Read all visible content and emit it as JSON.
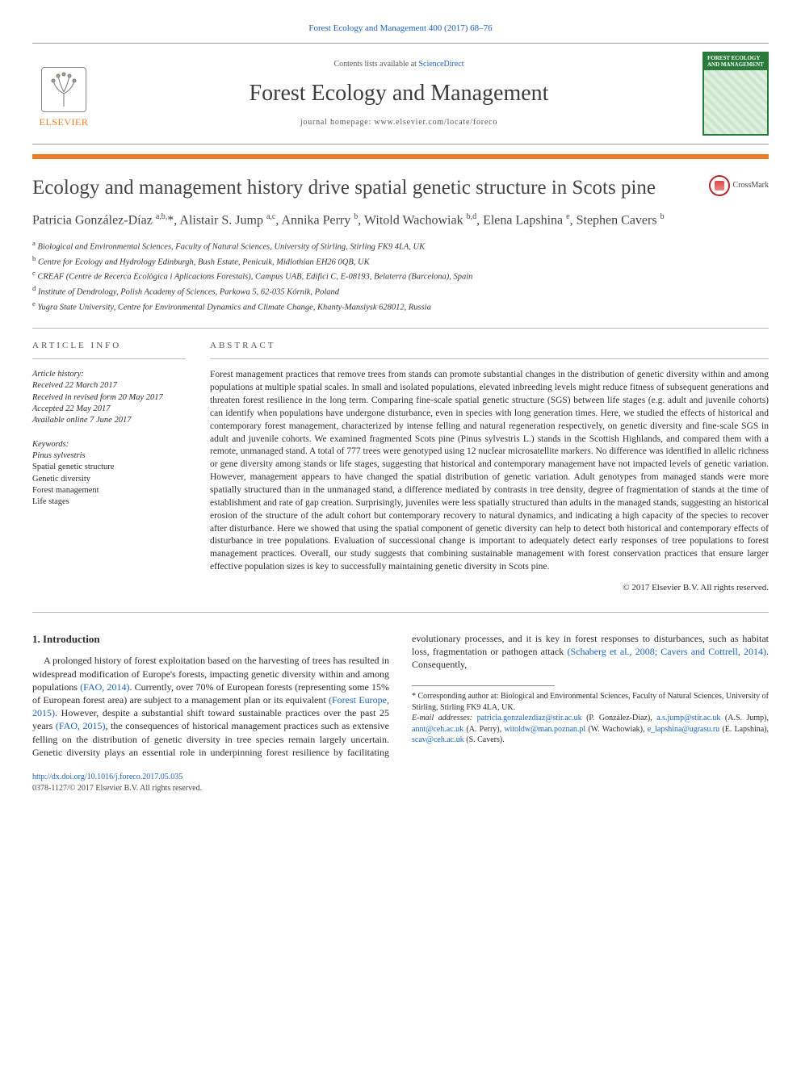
{
  "colors": {
    "link": "#1a62b8",
    "accent": "#ef7a22",
    "coverGreen": "#2a7a3a",
    "text": "#2b2b2b",
    "rule": "#bbbbbb"
  },
  "header": {
    "citation": "Forest Ecology and Management 400 (2017) 68–76",
    "contentsPrefix": "Contents lists available at ",
    "contentsLinkText": "ScienceDirect",
    "journalName": "Forest Ecology and Management",
    "homepagePrefix": "journal homepage: ",
    "homepageUrl": "www.elsevier.com/locate/foreco",
    "publisherLogoText": "ELSEVIER",
    "coverTitle": "FOREST ECOLOGY AND MANAGEMENT"
  },
  "article": {
    "title": "Ecology and management history drive spatial genetic structure in Scots pine",
    "crossmarkLabel": "CrossMark",
    "authorsHtml": "Patricia González-Díaz <sup>a,b,</sup>*, Alistair S. Jump <sup>a,c</sup>, Annika Perry <sup>b</sup>, Witold Wachowiak <sup>b,d</sup>, Elena Lapshina <sup>e</sup>, Stephen Cavers <sup>b</sup>",
    "affiliations": [
      "a Biological and Environmental Sciences, Faculty of Natural Sciences, University of Stirling, Stirling FK9 4LA, UK",
      "b Centre for Ecology and Hydrology Edinburgh, Bush Estate, Penicuik, Midlothian EH26 0QB, UK",
      "c CREAF (Centre de Recerca Ecològica i Aplicacions Forestals), Campus UAB, Edifici C, E-08193, Belaterra (Barcelona), Spain",
      "d Institute of Dendrology, Polish Academy of Sciences, Parkowa 5, 62-035 Kórnik, Poland",
      "e Yugra State University, Centre for Environmental Dynamics and Climate Change, Khanty-Mansiysk 628012, Russia"
    ]
  },
  "meta": {
    "infoHeading": "ARTICLE INFO",
    "abstractHeading": "ABSTRACT",
    "historyLabel": "Article history:",
    "history": [
      "Received 22 March 2017",
      "Received in revised form 20 May 2017",
      "Accepted 22 May 2017",
      "Available online 7 June 2017"
    ],
    "keywordsLabel": "Keywords:",
    "keywords": [
      "Pinus sylvestris",
      "Spatial genetic structure",
      "Genetic diversity",
      "Forest management",
      "Life stages"
    ],
    "abstract": "Forest management practices that remove trees from stands can promote substantial changes in the distribution of genetic diversity within and among populations at multiple spatial scales. In small and isolated populations, elevated inbreeding levels might reduce fitness of subsequent generations and threaten forest resilience in the long term. Comparing fine-scale spatial genetic structure (SGS) between life stages (e.g. adult and juvenile cohorts) can identify when populations have undergone disturbance, even in species with long generation times. Here, we studied the effects of historical and contemporary forest management, characterized by intense felling and natural regeneration respectively, on genetic diversity and fine-scale SGS in adult and juvenile cohorts. We examined fragmented Scots pine (Pinus sylvestris L.) stands in the Scottish Highlands, and compared them with a remote, unmanaged stand. A total of 777 trees were genotyped using 12 nuclear microsatellite markers. No difference was identified in allelic richness or gene diversity among stands or life stages, suggesting that historical and contemporary management have not impacted levels of genetic variation. However, management appears to have changed the spatial distribution of genetic variation. Adult genotypes from managed stands were more spatially structured than in the unmanaged stand, a difference mediated by contrasts in tree density, degree of fragmentation of stands at the time of establishment and rate of gap creation. Surprisingly, juveniles were less spatially structured than adults in the managed stands, suggesting an historical erosion of the structure of the adult cohort but contemporary recovery to natural dynamics, and indicating a high capacity of the species to recover after disturbance. Here we showed that using the spatial component of genetic diversity can help to detect both historical and contemporary effects of disturbance in tree populations. Evaluation of successional change is important to adequately detect early responses of tree populations to forest management practices. Overall, our study suggests that combining sustainable management with forest conservation practices that ensure larger effective population sizes is key to successfully maintaining genetic diversity in Scots pine.",
    "copyright": "© 2017 Elsevier B.V. All rights reserved."
  },
  "body": {
    "sectionNumber": "1.",
    "sectionTitle": "Introduction",
    "para1a": "A prolonged history of forest exploitation based on the harvesting of trees has resulted in widespread modification of Europe's forests, impacting genetic diversity within and among populations ",
    "para1b": "(FAO, 2014)",
    "para1c": ". Currently, over 70% of European forests (representing some 15% of European forest area) are subject to a management plan or its equivalent ",
    "para1d": "(Forest Europe, 2015)",
    "para1e": ". However, despite a substantial shift toward sustainable practices over the past 25 years ",
    "para1f": "(FAO, 2015)",
    "para1g": ", the consequences of historical management practices such as extensive felling on the distribution of genetic diversity in tree species remain largely uncertain. Genetic diversity plays an essential role in underpinning forest resilience by facilitating evolutionary processes, and it is key in forest responses to disturbances, such as habitat loss, fragmentation or pathogen attack ",
    "para1h": "(Schaberg et al., 2008; Cavers and Cottrell, 2014)",
    "para1i": ". Consequently,"
  },
  "footnotes": {
    "corresponding": "* Corresponding author at: Biological and Environmental Sciences, Faculty of Natural Sciences, University of Stirling, Stirling FK9 4LA, UK.",
    "emailsLabel": "E-mail addresses:",
    "emails": [
      {
        "addr": "patricia.gonzalezdiaz@stir.ac.uk",
        "who": "(P. González-Díaz)"
      },
      {
        "addr": "a.s.jump@stir.ac.uk",
        "who": "(A.S. Jump)"
      },
      {
        "addr": "annt@ceh.ac.uk",
        "who": "(A. Perry)"
      },
      {
        "addr": "witoldw@man.poznan.pl",
        "who": "(W. Wachowiak)"
      },
      {
        "addr": "e_lapshina@ugrasu.ru",
        "who": "(E. Lapshina)"
      },
      {
        "addr": "scav@ceh.ac.uk",
        "who": "(S. Cavers)"
      }
    ]
  },
  "bottom": {
    "doi": "http://dx.doi.org/10.1016/j.foreco.2017.05.035",
    "issnLine": "0378-1127/© 2017 Elsevier B.V. All rights reserved."
  }
}
